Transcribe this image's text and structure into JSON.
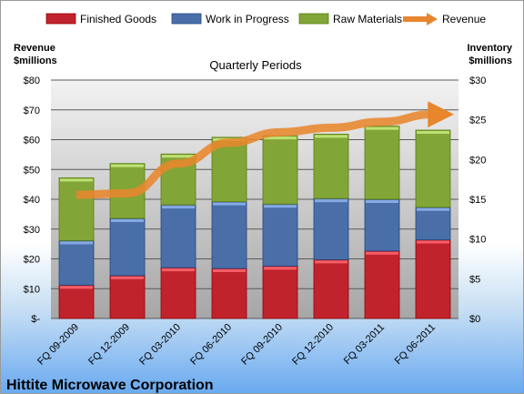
{
  "chart_data": {
    "type": "bar",
    "stacked": true,
    "title": "Quarterly Periods",
    "footer": "Hittite Microwave Corporation",
    "categories": [
      "FQ 09-2009",
      "FQ 12-2009",
      "FQ 03-2010",
      "FQ 06-2010",
      "FQ 09-2010",
      "FQ 12-2010",
      "FQ 03-2011",
      "FQ 06-2011"
    ],
    "series": [
      {
        "name": "Finished Goods",
        "axis": "right",
        "color": "#c0232c",
        "values": [
          4.2,
          5.4,
          6.4,
          6.3,
          6.6,
          7.4,
          8.5,
          9.9
        ]
      },
      {
        "name": "Work in Progress",
        "axis": "right",
        "color": "#4a6fa8",
        "values": [
          5.6,
          7.2,
          7.9,
          8.4,
          7.8,
          7.7,
          6.5,
          4.1
        ]
      },
      {
        "name": "Raw Materials",
        "axis": "right",
        "color": "#82a537",
        "values": [
          7.9,
          6.9,
          6.4,
          8.1,
          8.6,
          8.1,
          9.2,
          9.7
        ]
      },
      {
        "name": "Revenue",
        "type": "line",
        "axis": "left",
        "color": "#e8862d",
        "values": [
          41.5,
          42,
          52,
          59,
          62.5,
          64,
          66,
          68.5
        ]
      }
    ],
    "y_left": {
      "label": "Revenue\n$millions",
      "lim": [
        0,
        80
      ],
      "ticks": [
        "$-",
        "$10",
        "$20",
        "$30",
        "$40",
        "$50",
        "$60",
        "$70",
        "$80"
      ]
    },
    "y_right": {
      "label": "Inventory\n$millions",
      "lim": [
        0,
        30
      ],
      "ticks": [
        "$0",
        "$5",
        "$10",
        "$15",
        "$20",
        "$25",
        "$30"
      ]
    },
    "legend": {
      "position": "top",
      "items": [
        "Finished Goods",
        "Work in Progress",
        "Raw Materials",
        "Revenue"
      ]
    },
    "grid": true
  }
}
